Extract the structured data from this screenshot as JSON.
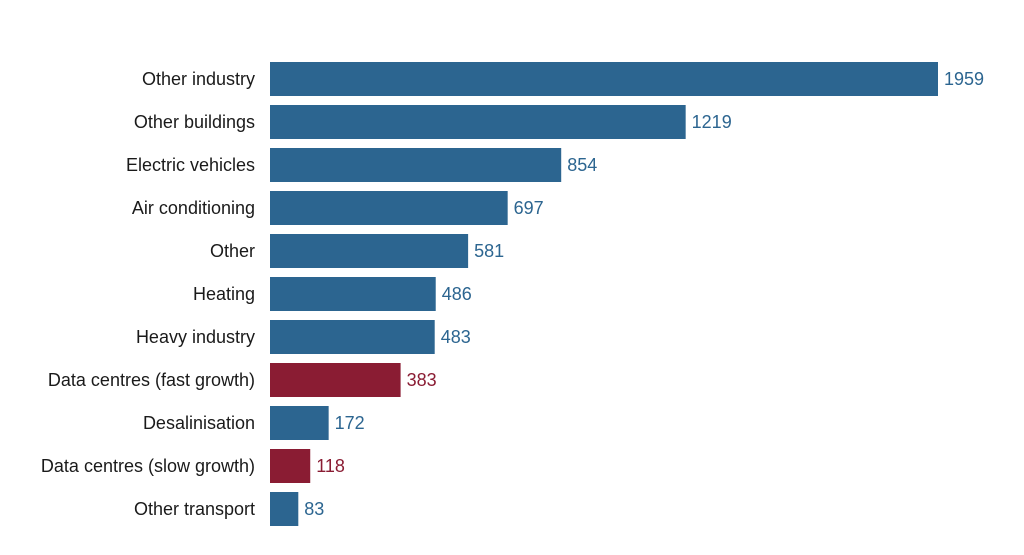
{
  "colors": {
    "primary": "#2c6590",
    "highlight": "#8a1c33",
    "category_text": "#1a1a1a",
    "background": "#ffffff"
  },
  "chart_data": {
    "type": "bar",
    "orientation": "horizontal",
    "title": "",
    "xlabel": "",
    "ylabel": "",
    "grid": false,
    "legend": false,
    "xlim": [
      0,
      1959
    ],
    "categories": [
      "Other industry",
      "Other buildings",
      "Electric vehicles",
      "Air conditioning",
      "Other",
      "Heating",
      "Heavy industry",
      "Data centres (fast growth)",
      "Desalinisation",
      "Data centres (slow growth)",
      "Other transport"
    ],
    "values": [
      1959,
      1219,
      854,
      697,
      581,
      486,
      483,
      383,
      172,
      118,
      83
    ],
    "highlighted": [
      false,
      false,
      false,
      false,
      false,
      false,
      false,
      true,
      false,
      true,
      false
    ]
  }
}
